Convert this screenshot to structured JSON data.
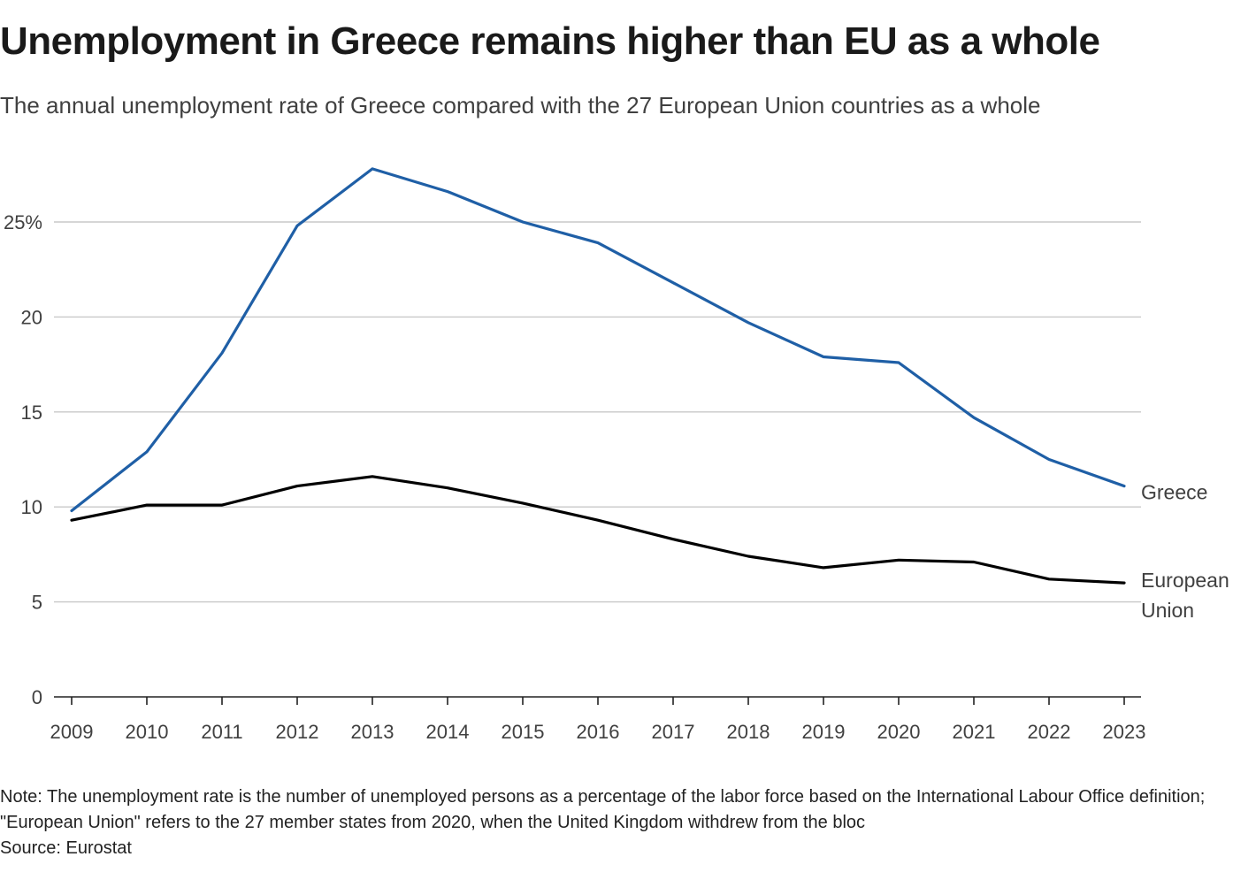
{
  "title": "Unemployment in Greece remains higher than EU as a whole",
  "subtitle": "The annual unemployment rate of Greece compared with the 27 European Union countries as a whole",
  "note": "Note: The unemployment rate is the number of unemployed persons as a percentage of the labor force based on the International Labour Office definition; \"European Union\" refers to the 27 member states from 2020, when the United Kingdom withdrew from the bloc",
  "source": "Source: Eurostat",
  "colors": {
    "greece": "#1f5fa6",
    "eu": "#000000",
    "grid": "#c8c8c8",
    "axis": "#222222"
  },
  "chart_data": {
    "type": "line",
    "title": "Unemployment in Greece remains higher than EU as a whole",
    "xlabel": "",
    "ylabel": "",
    "x": [
      "2009",
      "2010",
      "2011",
      "2012",
      "2013",
      "2014",
      "2015",
      "2016",
      "2017",
      "2018",
      "2019",
      "2020",
      "2021",
      "2022",
      "2023"
    ],
    "ylim": [
      0,
      28
    ],
    "yticks": [
      0,
      5,
      10,
      15,
      20,
      25
    ],
    "ytick_labels": [
      "0",
      "5",
      "10",
      "15",
      "20",
      "25%"
    ],
    "grid": true,
    "series": [
      {
        "name": "Greece",
        "label_lines": [
          "Greece"
        ],
        "color": "#1f5fa6",
        "values": [
          9.8,
          12.9,
          18.1,
          24.8,
          27.8,
          26.6,
          25.0,
          23.9,
          21.8,
          19.7,
          17.9,
          17.6,
          14.7,
          12.5,
          11.1
        ]
      },
      {
        "name": "European Union",
        "label_lines": [
          "European",
          "Union"
        ],
        "color": "#000000",
        "values": [
          9.3,
          10.1,
          10.1,
          11.1,
          11.6,
          11.0,
          10.2,
          9.3,
          8.3,
          7.4,
          6.8,
          7.2,
          7.1,
          6.2,
          6.0
        ]
      }
    ]
  }
}
